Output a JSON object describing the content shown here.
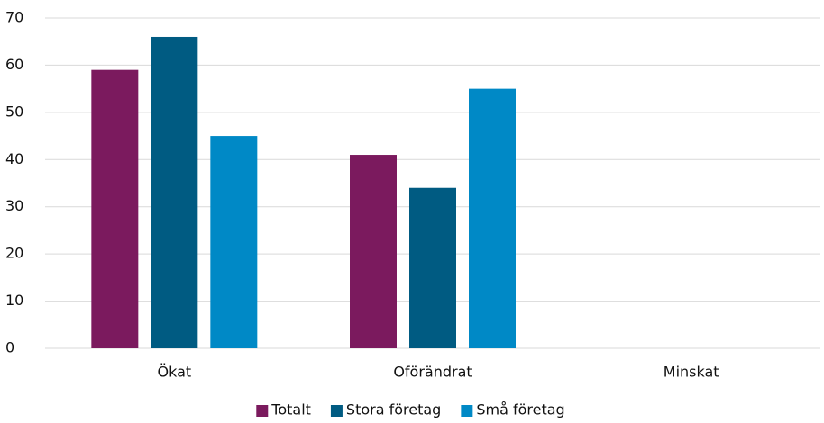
{
  "chart_data": {
    "type": "bar",
    "categories": [
      "Ökat",
      "Oförändrat",
      "Minskat"
    ],
    "series": [
      {
        "name": "Totalt",
        "color": "#7b1a5e",
        "values": [
          59,
          41,
          0
        ]
      },
      {
        "name": "Stora företag",
        "color": "#005b82",
        "values": [
          66,
          34,
          0
        ]
      },
      {
        "name": "Små företag",
        "color": "#0089c6",
        "values": [
          45,
          55,
          0
        ]
      }
    ],
    "ylim": [
      0,
      70
    ],
    "yticks": [
      0,
      10,
      20,
      30,
      40,
      50,
      60,
      70
    ],
    "grid": true,
    "legend": "bottom"
  }
}
